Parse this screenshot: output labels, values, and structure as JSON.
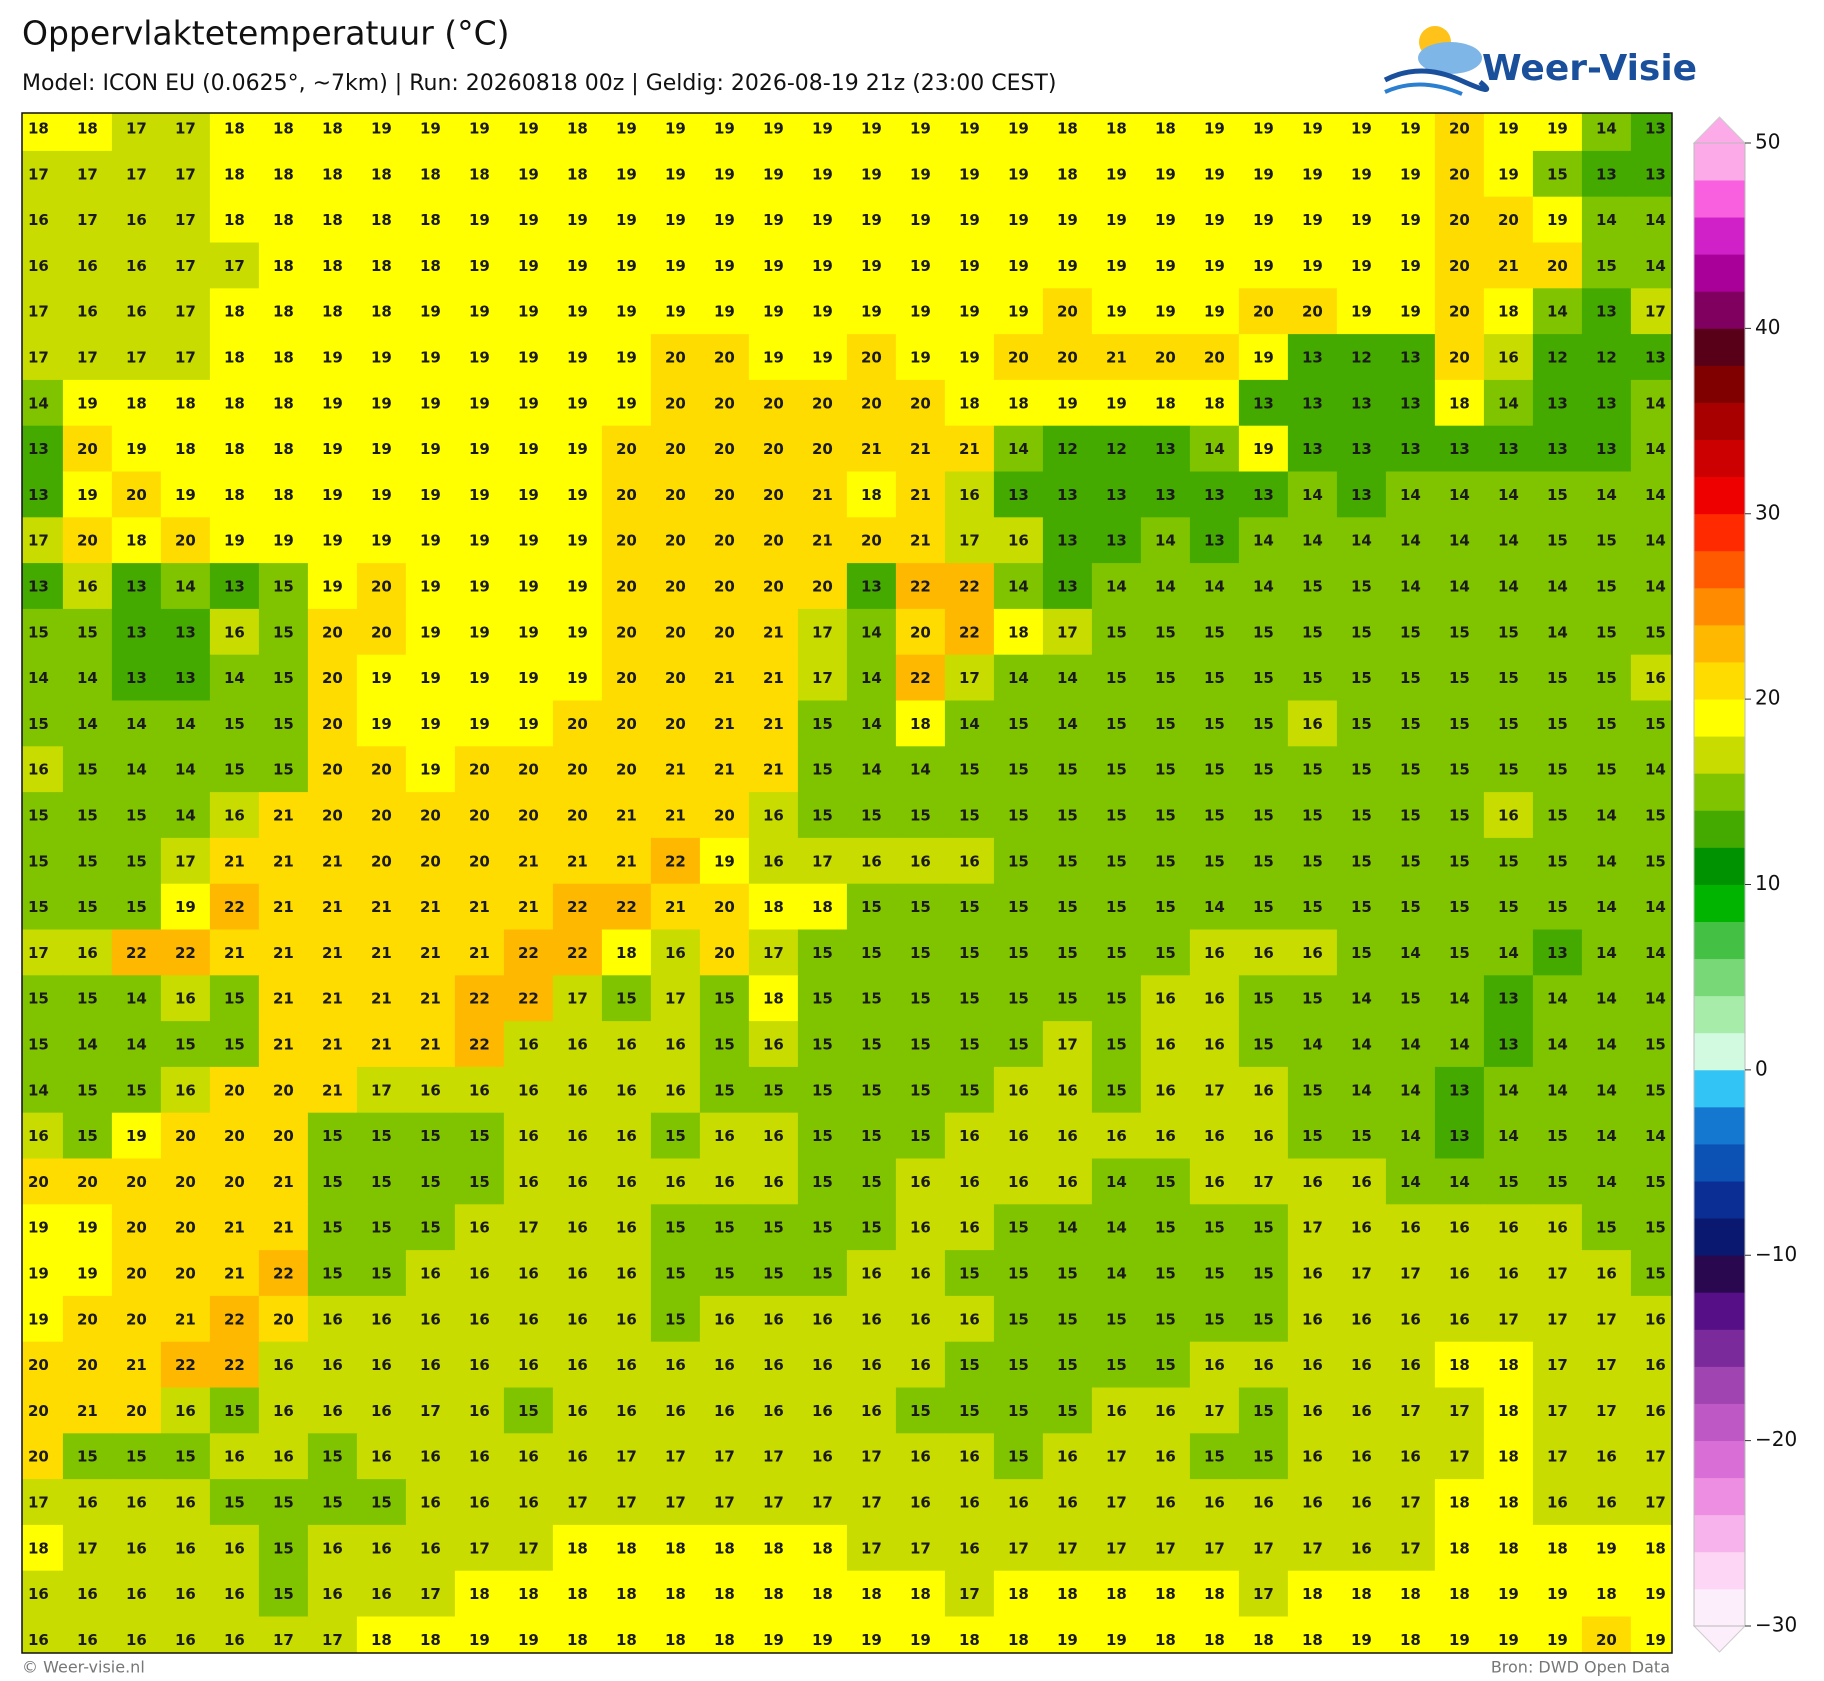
{
  "header": {
    "title": "Oppervlaktetemperatuur (°C)",
    "subtitle": "Model: ICON EU (0.0625°, ~7km)  |  Run: 20260818 00z  |  Geldig: 2026-08-19 21z (23:00 CEST)"
  },
  "logo": "Weer-Visie",
  "map": {
    "rows": [
      [
        18,
        18,
        17,
        17,
        18,
        18,
        18,
        19,
        19,
        19,
        19,
        18,
        19,
        19,
        19,
        19,
        19,
        19,
        19,
        19,
        19,
        18,
        18,
        18,
        19,
        19,
        19,
        19,
        19,
        20,
        19,
        19,
        14,
        13
      ],
      [
        17,
        17,
        17,
        17,
        18,
        18,
        18,
        18,
        18,
        18,
        19,
        18,
        19,
        19,
        19,
        19,
        19,
        19,
        19,
        19,
        19,
        18,
        19,
        19,
        19,
        19,
        19,
        19,
        19,
        20,
        19,
        15,
        13,
        13
      ],
      [
        16,
        17,
        16,
        17,
        18,
        18,
        18,
        18,
        18,
        19,
        19,
        19,
        19,
        19,
        19,
        19,
        19,
        19,
        19,
        19,
        19,
        19,
        19,
        19,
        19,
        19,
        19,
        19,
        19,
        20,
        20,
        19,
        14,
        14
      ],
      [
        16,
        16,
        16,
        17,
        17,
        18,
        18,
        18,
        18,
        19,
        19,
        19,
        19,
        19,
        19,
        19,
        19,
        19,
        19,
        19,
        19,
        19,
        19,
        19,
        19,
        19,
        19,
        19,
        19,
        20,
        21,
        20,
        15,
        14
      ],
      [
        17,
        16,
        16,
        17,
        18,
        18,
        18,
        18,
        19,
        19,
        19,
        19,
        19,
        19,
        19,
        19,
        19,
        19,
        19,
        19,
        19,
        20,
        19,
        19,
        19,
        20,
        20,
        19,
        19,
        20,
        18,
        14,
        13,
        17
      ],
      [
        17,
        17,
        17,
        17,
        18,
        18,
        19,
        19,
        19,
        19,
        19,
        19,
        19,
        20,
        20,
        19,
        19,
        20,
        19,
        19,
        20,
        20,
        21,
        20,
        20,
        19,
        13,
        12,
        13,
        20,
        16,
        12,
        12,
        13
      ],
      [
        14,
        19,
        18,
        18,
        18,
        18,
        19,
        19,
        19,
        19,
        19,
        19,
        19,
        20,
        20,
        20,
        20,
        20,
        20,
        18,
        18,
        19,
        19,
        18,
        18,
        13,
        13,
        13,
        13,
        18,
        14,
        13,
        13,
        14
      ],
      [
        13,
        20,
        19,
        18,
        18,
        18,
        19,
        19,
        19,
        19,
        19,
        19,
        20,
        20,
        20,
        20,
        20,
        21,
        21,
        21,
        14,
        12,
        12,
        13,
        14,
        19,
        13,
        13,
        13,
        13,
        13,
        13,
        13,
        14
      ],
      [
        13,
        19,
        20,
        19,
        18,
        18,
        19,
        19,
        19,
        19,
        19,
        19,
        20,
        20,
        20,
        20,
        21,
        18,
        21,
        16,
        13,
        13,
        13,
        13,
        13,
        13,
        14,
        13,
        14,
        14,
        14,
        15,
        14,
        14
      ],
      [
        17,
        20,
        18,
        20,
        19,
        19,
        19,
        19,
        19,
        19,
        19,
        19,
        20,
        20,
        20,
        20,
        21,
        20,
        21,
        17,
        16,
        13,
        13,
        14,
        13,
        14,
        14,
        14,
        14,
        14,
        14,
        15,
        15,
        14
      ],
      [
        13,
        16,
        13,
        14,
        13,
        15,
        19,
        20,
        19,
        19,
        19,
        19,
        20,
        20,
        20,
        20,
        20,
        13,
        22,
        22,
        14,
        13,
        14,
        14,
        14,
        14,
        15,
        15,
        14,
        14,
        14,
        14,
        15,
        14
      ],
      [
        15,
        15,
        13,
        13,
        16,
        15,
        20,
        20,
        19,
        19,
        19,
        19,
        20,
        20,
        20,
        21,
        17,
        14,
        20,
        22,
        18,
        17,
        15,
        15,
        15,
        15,
        15,
        15,
        15,
        15,
        15,
        14,
        15,
        15
      ],
      [
        14,
        14,
        13,
        13,
        14,
        15,
        20,
        19,
        19,
        19,
        19,
        19,
        20,
        20,
        21,
        21,
        17,
        14,
        22,
        17,
        14,
        14,
        15,
        15,
        15,
        15,
        15,
        15,
        15,
        15,
        15,
        15,
        15,
        16
      ],
      [
        15,
        14,
        14,
        14,
        15,
        15,
        20,
        19,
        19,
        19,
        19,
        20,
        20,
        20,
        21,
        21,
        15,
        14,
        18,
        14,
        15,
        14,
        15,
        15,
        15,
        15,
        16,
        15,
        15,
        15,
        15,
        15,
        15,
        15
      ],
      [
        16,
        15,
        14,
        14,
        15,
        15,
        20,
        20,
        19,
        20,
        20,
        20,
        20,
        21,
        21,
        21,
        15,
        14,
        14,
        15,
        15,
        15,
        15,
        15,
        15,
        15,
        15,
        15,
        15,
        15,
        15,
        15,
        15,
        14
      ],
      [
        15,
        15,
        15,
        14,
        16,
        21,
        20,
        20,
        20,
        20,
        20,
        20,
        21,
        21,
        20,
        16,
        15,
        15,
        15,
        15,
        15,
        15,
        15,
        15,
        15,
        15,
        15,
        15,
        15,
        15,
        16,
        15,
        14,
        15
      ],
      [
        15,
        15,
        15,
        17,
        21,
        21,
        21,
        20,
        20,
        20,
        21,
        21,
        21,
        22,
        19,
        16,
        17,
        16,
        16,
        16,
        15,
        15,
        15,
        15,
        15,
        15,
        15,
        15,
        15,
        15,
        15,
        15,
        14,
        15
      ],
      [
        15,
        15,
        15,
        19,
        22,
        21,
        21,
        21,
        21,
        21,
        21,
        22,
        22,
        21,
        20,
        18,
        18,
        15,
        15,
        15,
        15,
        15,
        15,
        15,
        14,
        15,
        15,
        15,
        15,
        15,
        15,
        15,
        14,
        14
      ],
      [
        17,
        16,
        22,
        22,
        21,
        21,
        21,
        21,
        21,
        21,
        22,
        22,
        18,
        16,
        20,
        17,
        15,
        15,
        15,
        15,
        15,
        15,
        15,
        15,
        16,
        16,
        16,
        15,
        14,
        15,
        14,
        13,
        14,
        14
      ],
      [
        15,
        15,
        14,
        16,
        15,
        21,
        21,
        21,
        21,
        22,
        22,
        17,
        15,
        17,
        15,
        18,
        15,
        15,
        15,
        15,
        15,
        15,
        15,
        16,
        16,
        15,
        15,
        14,
        15,
        14,
        13,
        14,
        14,
        14
      ],
      [
        15,
        14,
        14,
        15,
        15,
        21,
        21,
        21,
        21,
        22,
        16,
        16,
        16,
        16,
        15,
        16,
        15,
        15,
        15,
        15,
        15,
        17,
        15,
        16,
        16,
        15,
        14,
        14,
        14,
        14,
        13,
        14,
        14,
        15
      ],
      [
        14,
        15,
        15,
        16,
        20,
        20,
        21,
        17,
        16,
        16,
        16,
        16,
        16,
        16,
        15,
        15,
        15,
        15,
        15,
        15,
        16,
        16,
        15,
        16,
        17,
        16,
        15,
        14,
        14,
        13,
        14,
        14,
        14,
        15
      ],
      [
        16,
        15,
        19,
        20,
        20,
        20,
        15,
        15,
        15,
        15,
        16,
        16,
        16,
        15,
        16,
        16,
        15,
        15,
        15,
        16,
        16,
        16,
        16,
        16,
        16,
        16,
        15,
        15,
        14,
        13,
        14,
        15,
        14,
        14
      ],
      [
        20,
        20,
        20,
        20,
        20,
        21,
        15,
        15,
        15,
        15,
        16,
        16,
        16,
        16,
        16,
        16,
        15,
        15,
        16,
        16,
        16,
        16,
        14,
        15,
        16,
        17,
        16,
        16,
        14,
        14,
        15,
        15,
        14,
        15
      ],
      [
        19,
        19,
        20,
        20,
        21,
        21,
        15,
        15,
        15,
        16,
        17,
        16,
        16,
        15,
        15,
        15,
        15,
        15,
        16,
        16,
        15,
        14,
        14,
        15,
        15,
        15,
        17,
        16,
        16,
        16,
        16,
        16,
        15,
        15
      ],
      [
        19,
        19,
        20,
        20,
        21,
        22,
        15,
        15,
        16,
        16,
        16,
        16,
        16,
        15,
        15,
        15,
        15,
        16,
        16,
        15,
        15,
        15,
        14,
        15,
        15,
        15,
        16,
        17,
        17,
        16,
        16,
        17,
        16,
        15
      ],
      [
        19,
        20,
        20,
        21,
        22,
        20,
        16,
        16,
        16,
        16,
        16,
        16,
        16,
        15,
        16,
        16,
        16,
        16,
        16,
        16,
        15,
        15,
        15,
        15,
        15,
        15,
        16,
        16,
        16,
        16,
        17,
        17,
        17,
        16
      ],
      [
        20,
        20,
        21,
        22,
        22,
        16,
        16,
        16,
        16,
        16,
        16,
        16,
        16,
        16,
        16,
        16,
        16,
        16,
        16,
        15,
        15,
        15,
        15,
        15,
        16,
        16,
        16,
        16,
        16,
        18,
        18,
        17,
        17,
        16
      ],
      [
        20,
        21,
        20,
        16,
        15,
        16,
        16,
        16,
        17,
        16,
        15,
        16,
        16,
        16,
        16,
        16,
        16,
        16,
        15,
        15,
        15,
        15,
        16,
        16,
        17,
        15,
        16,
        16,
        17,
        17,
        18,
        17,
        17,
        16
      ],
      [
        20,
        15,
        15,
        15,
        16,
        16,
        15,
        16,
        16,
        16,
        16,
        16,
        17,
        17,
        17,
        17,
        16,
        17,
        16,
        16,
        15,
        16,
        17,
        16,
        15,
        15,
        16,
        16,
        16,
        17,
        18,
        17,
        16,
        17
      ],
      [
        17,
        16,
        16,
        16,
        15,
        15,
        15,
        15,
        16,
        16,
        16,
        17,
        17,
        17,
        17,
        17,
        17,
        17,
        16,
        16,
        16,
        16,
        17,
        16,
        16,
        16,
        16,
        16,
        17,
        18,
        18,
        16,
        16,
        17
      ],
      [
        18,
        17,
        16,
        16,
        16,
        15,
        16,
        16,
        16,
        17,
        17,
        18,
        18,
        18,
        18,
        18,
        18,
        17,
        17,
        16,
        17,
        17,
        17,
        17,
        17,
        17,
        17,
        16,
        17,
        18,
        18,
        18,
        19,
        18
      ],
      [
        16,
        16,
        16,
        16,
        16,
        15,
        16,
        16,
        17,
        18,
        18,
        18,
        18,
        18,
        18,
        18,
        18,
        18,
        18,
        17,
        18,
        18,
        18,
        18,
        18,
        17,
        18,
        18,
        18,
        18,
        19,
        19,
        18,
        19
      ],
      [
        16,
        16,
        16,
        16,
        16,
        17,
        17,
        18,
        18,
        19,
        19,
        18,
        18,
        18,
        18,
        19,
        19,
        19,
        19,
        18,
        18,
        19,
        19,
        18,
        18,
        18,
        18,
        19,
        18,
        19,
        19,
        19,
        20,
        19
      ]
    ]
  },
  "colorbar": {
    "range": [
      -30,
      50
    ],
    "colors": [
      "#fdeefb",
      "#fcd6f4",
      "#f7b4ec",
      "#ee8ee2",
      "#d86ed6",
      "#be58c4",
      "#a044b2",
      "#7a2a9a",
      "#560f86",
      "#2a0850",
      "#0a1870",
      "#0a2e94",
      "#0c52b4",
      "#1478d0",
      "#32c4f5",
      "#d2fae0",
      "#a8ecaa",
      "#78d878",
      "#44c044",
      "#00b400",
      "#009200",
      "#44aa00",
      "#80c400",
      "#c8dc00",
      "#ffff00",
      "#ffdc00",
      "#ffb800",
      "#ff8c00",
      "#ff5a00",
      "#ff2a00",
      "#ee0000",
      "#cc0000",
      "#a80000",
      "#800000",
      "#580018",
      "#800060",
      "#a80098",
      "#d020c8",
      "#f860e0",
      "#fcaae8"
    ],
    "ticks": [
      50,
      40,
      30,
      20,
      10,
      0,
      {
        "value": -10,
        "label": "−10"
      },
      {
        "value": -20,
        "label": "−20"
      },
      {
        "value": -30,
        "label": "−30"
      }
    ]
  },
  "footer": {
    "left": "© Weer-visie.nl",
    "right": "Bron: DWD Open Data"
  }
}
